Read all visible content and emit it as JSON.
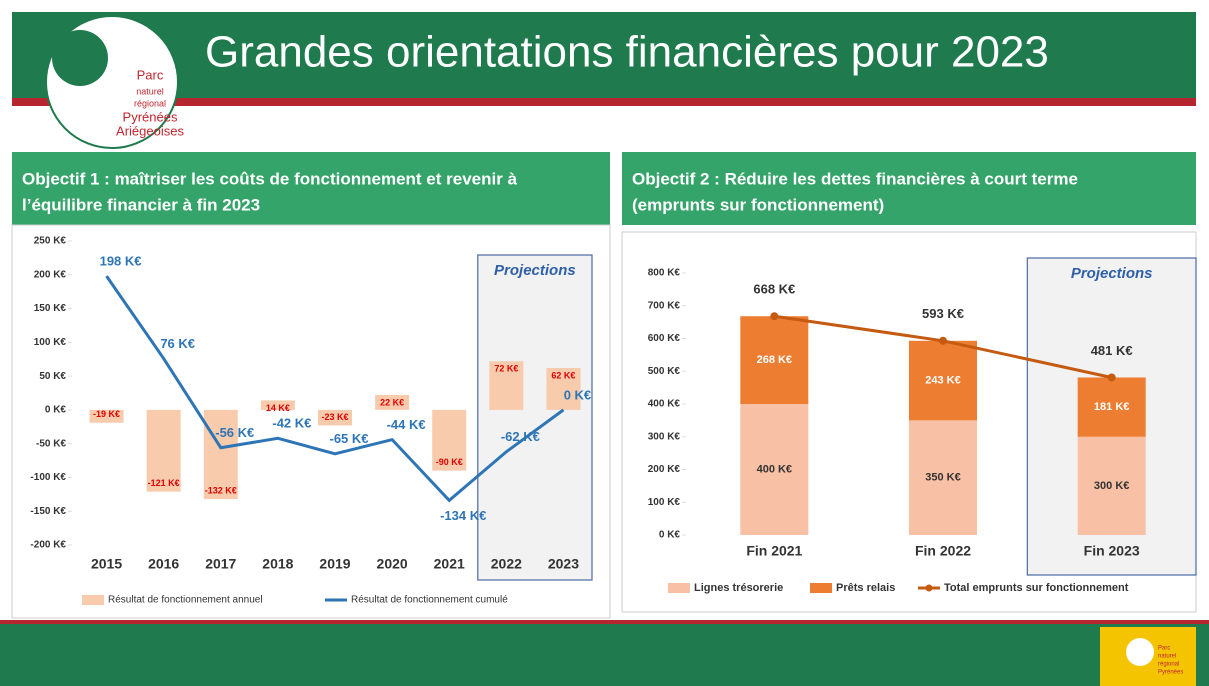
{
  "header": {
    "title": "Grandes orientations financières pour 2023",
    "logo": [
      "Parc",
      "naturel",
      "régional",
      "Pyrénées",
      "Ariégeoises"
    ],
    "footer_logo": [
      "Parc",
      "naturel",
      "régional",
      "Pyrénées"
    ]
  },
  "chart_data": [
    {
      "type": "combo",
      "title": "Objectif 1 : maîtriser les coûts de fonctionnement et revenir à l’équilibre financier à fin 2023",
      "annotation": "Projections",
      "categories": [
        "2015",
        "2016",
        "2017",
        "2018",
        "2019",
        "2020",
        "2021",
        "2022",
        "2023"
      ],
      "series": [
        {
          "name": "Résultat de fonctionnement annuel",
          "type": "bar",
          "color": "#f8cbad",
          "values": [
            -19,
            -121,
            -132,
            14,
            -23,
            22,
            -90,
            72,
            62
          ],
          "value_labels": [
            "-19 K€",
            "-121 K€",
            "-132 K€",
            "14 K€",
            "-23 K€",
            "22 K€",
            "-90 K€",
            "72 K€",
            "62 K€"
          ]
        },
        {
          "name": "Résultat de fonctionnement cumulé",
          "type": "line",
          "color": "#2e75b6",
          "values": [
            198,
            76,
            -56,
            -42,
            -65,
            -44,
            -134,
            -62,
            0
          ],
          "value_labels": [
            "198 K€",
            "76 K€",
            "-56 K€",
            "-42 K€",
            "-65 K€",
            "-44 K€",
            "-134 K€",
            "-62 K€",
            "0 K€"
          ]
        }
      ],
      "ylim": [
        -200,
        250
      ],
      "yticks": [
        {
          "value": -200,
          "label": "-200 K€"
        },
        {
          "value": -150,
          "label": "-150 K€"
        },
        {
          "value": -100,
          "label": "-100 K€"
        },
        {
          "value": -50,
          "label": "-50 K€"
        },
        {
          "value": 0,
          "label": "0 K€"
        },
        {
          "value": 50,
          "label": "50 K€"
        },
        {
          "value": 100,
          "label": "100 K€"
        },
        {
          "value": 150,
          "label": "150 K€"
        },
        {
          "value": 200,
          "label": "200 K€"
        },
        {
          "value": 250,
          "label": "250 K€"
        }
      ]
    },
    {
      "type": "stacked",
      "title": "Objectif 2 : Réduire les dettes financières à court terme (emprunts sur fonctionnement)",
      "annotation": "Projections",
      "categories": [
        "Fin 2021",
        "Fin 2022",
        "Fin 2023"
      ],
      "series": [
        {
          "name": "Lignes trésorerie",
          "type": "bar",
          "color": "#f8c0a4",
          "values": [
            400,
            350,
            300
          ],
          "value_labels": [
            "400 K€",
            "350 K€",
            "300 K€"
          ]
        },
        {
          "name": "Prêts relais",
          "type": "bar",
          "color": "#ed7d31",
          "values": [
            268,
            243,
            181
          ],
          "value_labels": [
            "268 K€",
            "243 K€",
            "181 K€"
          ]
        },
        {
          "name": "Total emprunts sur fonctionnement",
          "type": "line",
          "color": "#c55a11",
          "values": [
            668,
            593,
            481
          ],
          "value_labels": [
            "668 K€",
            "593 K€",
            "481 K€"
          ]
        }
      ],
      "ylim": [
        0,
        800
      ],
      "yticks": [
        {
          "value": 0,
          "label": "0 K€"
        },
        {
          "value": 100,
          "label": "100 K€"
        },
        {
          "value": 200,
          "label": "200 K€"
        },
        {
          "value": 300,
          "label": "300 K€"
        },
        {
          "value": 400,
          "label": "400 K€"
        },
        {
          "value": 500,
          "label": "500 K€"
        },
        {
          "value": 600,
          "label": "600 K€"
        },
        {
          "value": 700,
          "label": "700 K€"
        },
        {
          "value": 800,
          "label": "800 K€"
        }
      ]
    }
  ]
}
